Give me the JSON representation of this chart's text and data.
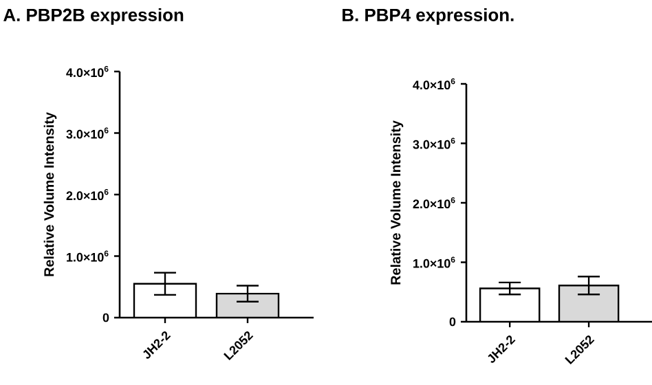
{
  "chart_data": [
    {
      "type": "bar",
      "title": "A.  PBP2B expression",
      "ylabel": "Relative Volume Intensity",
      "categories": [
        "JH2-2",
        "L2052"
      ],
      "values": [
        550000,
        390000
      ],
      "errors": [
        180000,
        130000
      ],
      "colors": [
        "#ffffff",
        "#d9d9d9"
      ],
      "ylim": [
        0,
        4000000
      ],
      "yticks": [
        0,
        {
          "value": 1000000,
          "label": "1.0×10$^{6}$"
        },
        {
          "value": 2000000,
          "label": "2.0×10$^{6}$"
        },
        {
          "value": 3000000,
          "label": "3.0×10$^{6}$"
        },
        {
          "value": 4000000,
          "label": "4.0×10$^{6}$"
        }
      ]
    },
    {
      "type": "bar",
      "title": "B. PBP4 expression.",
      "ylabel": "Relative Volume Intensity",
      "categories": [
        "JH2-2",
        "L2052"
      ],
      "values": [
        560000,
        610000
      ],
      "errors": [
        100000,
        150000
      ],
      "colors": [
        "#ffffff",
        "#d9d9d9"
      ],
      "ylim": [
        0,
        4000000
      ],
      "yticks": [
        0,
        {
          "value": 1000000,
          "label": "1.0×10$^{6}$"
        },
        {
          "value": 2000000,
          "label": "2.0×10$^{6}$"
        },
        {
          "value": 3000000,
          "label": "3.0×10$^{6}$"
        },
        {
          "value": 4000000,
          "label": "4.0×10$^{6}$"
        }
      ]
    }
  ]
}
